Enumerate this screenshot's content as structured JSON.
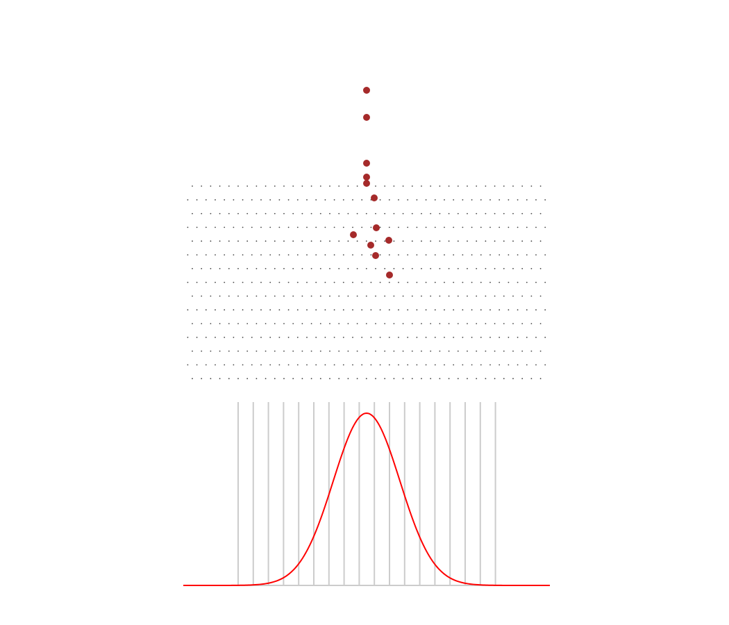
{
  "simulation": {
    "peg_board": {
      "rows": 15,
      "pegs_per_even_row": 39,
      "pegs_per_odd_row": 40
    },
    "balls": {
      "count": 12,
      "color": "#a52a2a"
    },
    "bins": {
      "divider_count": 18,
      "divider_color": "#cccccc"
    },
    "distribution_curve": {
      "color": "#ff0000",
      "shape": "normal"
    }
  }
}
